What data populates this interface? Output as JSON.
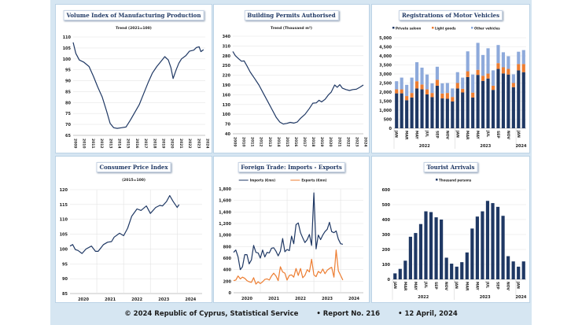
{
  "footer": {
    "copyright": "© 2024 Republic of Cyprus, Statistical Service",
    "report": "• Report No. 216",
    "date": "• 12 April, 2024"
  },
  "chart_data": [
    {
      "type": "line",
      "title": "Volume Index of Manufacturing Production",
      "subtitle": "Trend (2021=100)",
      "ylim": [
        65,
        110
      ],
      "ystep": 5,
      "x_tick_labels": [
        "2009",
        "2010",
        "2011",
        "2012",
        "2013",
        "2014",
        "2015",
        "2016",
        "2017",
        "2018",
        "2019",
        "2020",
        "2021",
        "2022",
        "2023",
        "2024"
      ],
      "xlim": [
        2009,
        2024
      ],
      "series": [
        {
          "color": "#1f3864",
          "x": [
            2009.0,
            2009.3,
            2009.7,
            2010.2,
            2010.8,
            2011.3,
            2011.8,
            2012.3,
            2012.8,
            2013.2,
            2013.6,
            2014.0,
            2014.5,
            2015.0,
            2015.5,
            2016.0,
            2016.5,
            2017.0,
            2017.5,
            2018.0,
            2018.5,
            2019.0,
            2019.4,
            2019.8,
            2020.1,
            2020.35,
            2020.7,
            2021.0,
            2021.3,
            2021.8,
            2022.2,
            2022.7,
            2023.0,
            2023.3,
            2023.5,
            2023.8
          ],
          "y": [
            107.5,
            102.5,
            99.5,
            98.5,
            96.5,
            92,
            87,
            82.5,
            76,
            70.5,
            68.5,
            68.2,
            68.5,
            68.8,
            72,
            75.5,
            79,
            84,
            89,
            93.5,
            96.5,
            99,
            101,
            99.5,
            96,
            91,
            95,
            98,
            100,
            101.5,
            103.5,
            104,
            105.2,
            105.5,
            103.3,
            104.2
          ]
        }
      ]
    },
    {
      "type": "line",
      "title": "Building Permits Authorised",
      "subtitle": "Trend  (Thousand m²)",
      "ylim": [
        40,
        340
      ],
      "ystep": 30,
      "x_tick_labels": [
        "2009",
        "2010",
        "2011",
        "2012",
        "2013",
        "2014",
        "2015",
        "2016",
        "2017",
        "2018",
        "2019",
        "2020",
        "2021",
        "2022",
        "2023",
        "2024"
      ],
      "xlim": [
        2009,
        2024
      ],
      "series": [
        {
          "color": "#1f3864",
          "x": [
            2009.0,
            2009.3,
            2009.7,
            2010.0,
            2010.3,
            2010.6,
            2011.0,
            2011.5,
            2012.0,
            2012.5,
            2013.0,
            2013.5,
            2014.0,
            2014.4,
            2014.8,
            2015.2,
            2015.6,
            2016.0,
            2016.4,
            2016.8,
            2017.3,
            2017.8,
            2018.2,
            2018.6,
            2018.9,
            2019.2,
            2019.6,
            2020.0,
            2020.3,
            2020.7,
            2021.0,
            2021.3,
            2021.6,
            2022.0,
            2022.4,
            2022.8,
            2023.2,
            2023.6,
            2024.0
          ],
          "y": [
            293,
            280,
            270,
            263,
            264,
            250,
            230,
            210,
            190,
            165,
            140,
            115,
            90,
            76,
            70,
            72,
            75,
            73,
            76,
            88,
            100,
            118,
            134,
            135,
            143,
            138,
            146,
            160,
            168,
            190,
            183,
            191,
            180,
            176,
            173,
            176,
            177,
            183,
            190
          ]
        }
      ]
    },
    {
      "type": "stacked-bar",
      "title": "Registrations of Motor Vehicles",
      "ylim": [
        0,
        5000
      ],
      "ystep": 500,
      "x_tick_labels": [
        "JAN",
        "",
        "MAR",
        "",
        "MAY",
        "",
        "JUL",
        "",
        "SEP",
        "",
        "NOV",
        "",
        "JAN",
        "",
        "MAR",
        "",
        "MAY",
        "",
        "JUL",
        "",
        "SEP",
        "",
        "NOV",
        "",
        "JAN",
        ""
      ],
      "year_labels": [
        "2022",
        "2023",
        "2024"
      ],
      "series": [
        {
          "name": "Private saloon",
          "color": "#1f3864",
          "values": [
            1930,
            1930,
            1550,
            1700,
            2200,
            2150,
            1870,
            1720,
            2350,
            1650,
            1630,
            1480,
            2200,
            1980,
            2830,
            1700,
            2950,
            2620,
            2750,
            2120,
            3280,
            3030,
            2970,
            2270,
            3200,
            3100
          ]
        },
        {
          "name": "Light goods",
          "color": "#ed7d31",
          "values": [
            220,
            220,
            230,
            250,
            400,
            270,
            280,
            230,
            330,
            270,
            320,
            250,
            300,
            200,
            320,
            270,
            280,
            280,
            270,
            230,
            320,
            340,
            310,
            230,
            350,
            450
          ]
        },
        {
          "name": "Other vehicles",
          "color": "#8eaadb",
          "values": [
            450,
            650,
            620,
            850,
            1050,
            930,
            820,
            530,
            720,
            560,
            550,
            470,
            600,
            620,
            1100,
            1000,
            1490,
            1150,
            1400,
            850,
            1000,
            830,
            700,
            480,
            680,
            770
          ]
        }
      ]
    },
    {
      "type": "line",
      "title": "Consumer Price Index",
      "subtitle": "(2015=100)",
      "ylim": [
        85,
        120
      ],
      "ystep": 5,
      "x_tick_labels": [
        "2020",
        "2021",
        "2022",
        "2023",
        "2024"
      ],
      "xlim": [
        2020,
        2024.93
      ],
      "series": [
        {
          "color": "#1f3864",
          "x": [
            2020.0,
            2020.1,
            2020.2,
            2020.3,
            2020.45,
            2020.6,
            2020.8,
            2020.95,
            2021.05,
            2021.25,
            2021.4,
            2021.55,
            2021.65,
            2021.85,
            2022.0,
            2022.15,
            2022.3,
            2022.5,
            2022.65,
            2022.85,
            2023.0,
            2023.2,
            2023.35,
            2023.45,
            2023.6,
            2023.72,
            2023.85,
            2024.0,
            2024.07
          ],
          "y": [
            101,
            101.5,
            99.8,
            99.5,
            98.5,
            100,
            101,
            99.2,
            99.2,
            101.5,
            102.3,
            102.5,
            104,
            105.3,
            104.5,
            107,
            111,
            113.5,
            113,
            114.5,
            112,
            114,
            114.7,
            114.5,
            116,
            118,
            116,
            114,
            115
          ]
        }
      ]
    },
    {
      "type": "line",
      "title": "Foreign Trade: Imports - Exports",
      "ylim": [
        0,
        1800
      ],
      "ystep": 200,
      "x_tick_labels": [
        "2020",
        "2021",
        "2022",
        "2023",
        "2024"
      ],
      "xlim": [
        2020,
        2024.85
      ],
      "series": [
        {
          "name": "Imports (€mn)",
          "color": "#1f3864",
          "y": [
            700,
            740,
            620,
            400,
            450,
            660,
            660,
            500,
            570,
            820,
            700,
            690,
            600,
            740,
            620,
            700,
            690,
            770,
            780,
            720,
            640,
            720,
            940,
            710,
            750,
            730,
            980,
            850,
            1180,
            1210,
            1040,
            950,
            870,
            920,
            1010,
            820,
            1730,
            760,
            1000,
            920,
            1000,
            1060,
            1100,
            1220,
            1060,
            1040,
            1070,
            930,
            850,
            840
          ]
        },
        {
          "name": "Exports (€mn)",
          "color": "#ed7d31",
          "y": [
            210,
            220,
            290,
            240,
            270,
            250,
            210,
            190,
            180,
            260,
            150,
            190,
            160,
            190,
            230,
            240,
            220,
            290,
            340,
            290,
            210,
            450,
            360,
            340,
            220,
            300,
            310,
            270,
            420,
            300,
            420,
            260,
            300,
            400,
            360,
            580,
            310,
            280,
            370,
            340,
            410,
            330,
            390,
            420,
            440,
            270,
            740,
            380,
            300,
            220
          ]
        }
      ]
    },
    {
      "type": "bar",
      "title": "Tourist Arrivals",
      "ylim": [
        0,
        600
      ],
      "ystep": 100,
      "x_tick_labels": [
        "JAN",
        "",
        "MAR",
        "",
        "MAY",
        "",
        "JUL",
        "",
        "SEP",
        "",
        "NOV",
        "",
        "JAN",
        "",
        "MAR",
        "",
        "MAY",
        "",
        "JUL",
        "",
        "SEP",
        "",
        "NOV",
        "",
        "JAN",
        ""
      ],
      "year_labels": [
        "2022",
        "2023",
        "2024"
      ],
      "series": [
        {
          "name": "Thousand persons",
          "color": "#1f3864",
          "values": [
            40,
            70,
            125,
            285,
            310,
            370,
            455,
            450,
            415,
            400,
            145,
            105,
            85,
            115,
            180,
            340,
            420,
            455,
            525,
            510,
            485,
            425,
            155,
            120,
            85,
            120
          ]
        }
      ]
    }
  ]
}
